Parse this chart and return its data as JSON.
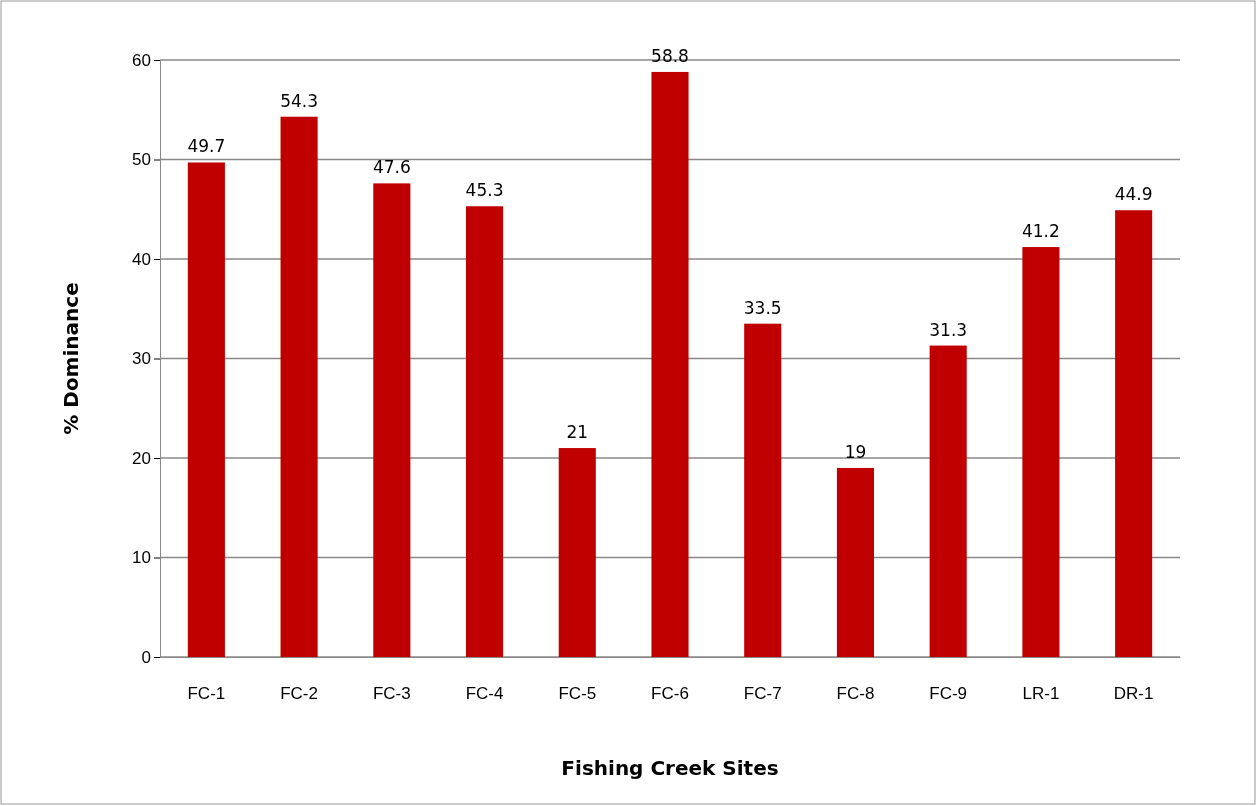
{
  "chart_data": {
    "type": "bar",
    "xlabel": "Fishing Creek Sites",
    "ylabel": "% Dominance",
    "categories": [
      "FC-1",
      "FC-2",
      "FC-3",
      "FC-4",
      "FC-5",
      "FC-6",
      "FC-7",
      "FC-8",
      "FC-9",
      "LR-1",
      "DR-1"
    ],
    "values": [
      49.7,
      54.3,
      47.6,
      45.3,
      21,
      58.8,
      33.5,
      19,
      31.3,
      41.2,
      44.9
    ],
    "color": "#c00000",
    "ylim": [
      0,
      60
    ],
    "yticks": [
      0,
      10,
      20,
      30,
      40,
      50,
      60
    ],
    "grid": "y",
    "data_labels": true
  }
}
